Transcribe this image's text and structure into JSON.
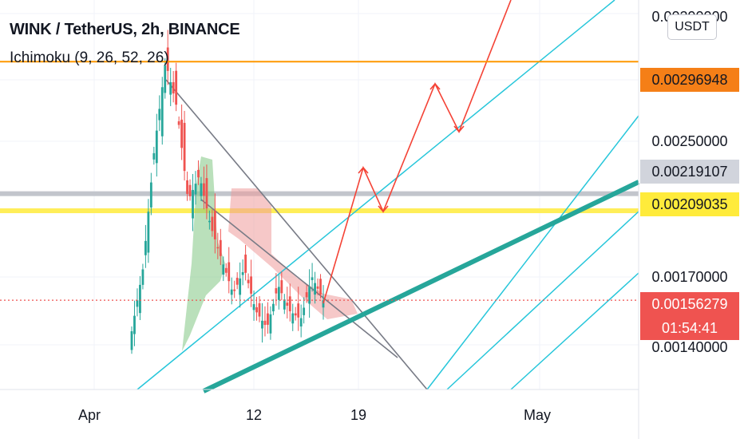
{
  "header": {
    "title": "WINK / TetherUS, 2h, BINANCE",
    "indicator": "Ichimoku (9, 26, 52, 26)"
  },
  "unit_button": "USDT",
  "price_axis": {
    "ticks": [
      "0.00290000",
      "0.00250000",
      "0.00170000",
      "0.00140000"
    ],
    "labels": [
      {
        "text": "0.00296948",
        "bg": "#f57f17",
        "color": "#131722"
      },
      {
        "text": "0.00219107",
        "bg": "#d1d4dc",
        "color": "#131722"
      },
      {
        "text": "0.00209035",
        "bg": "#ffeb3b",
        "color": "#131722"
      },
      {
        "text": "0.00156279",
        "bg": "#ef5350",
        "color": "#ffffff"
      }
    ],
    "countdown": "01:54:41"
  },
  "time_axis": {
    "labels": [
      "Apr",
      "12",
      "19",
      "May"
    ]
  },
  "colors": {
    "up": "#26a69a",
    "down": "#ef5350",
    "cloud_up": "#81c784",
    "cloud_down": "#ef9a9a",
    "projection": "#f44336",
    "channel": "#26c6da",
    "support": "#26a69a",
    "triangle": "#787b86",
    "resistance": "#ff9800",
    "zone_grey": "#c2c5cc",
    "zone_yellow": "#ffee58"
  },
  "chart_data": {
    "type": "candlestick",
    "symbol": "WINK / TetherUS",
    "interval": "2h",
    "exchange": "BINANCE",
    "indicator": "Ichimoku (9, 26, 52, 26)",
    "x_tick_labels": [
      "Apr",
      "12",
      "19",
      "May"
    ],
    "y_tick_labels": [
      "0.00290000",
      "0.00250000",
      "0.00170000",
      "0.00140000"
    ],
    "horizontal_levels": [
      0.00296948,
      0.00219107,
      0.00209035
    ],
    "last_price": 0.00156279,
    "price_series": [
      0.00138,
      0.00175,
      0.00245,
      0.00296948,
      0.0027,
      0.00215,
      0.0023,
      0.002,
      0.0018,
      0.0016,
      0.00175,
      0.0015,
      0.0014,
      0.00165,
      0.0015,
      0.00145,
      0.0017,
      0.00156279
    ],
    "projection_path": [
      0.00156279,
      0.0023,
      0.00205,
      0.003,
      0.00265,
      0.00345
    ]
  }
}
